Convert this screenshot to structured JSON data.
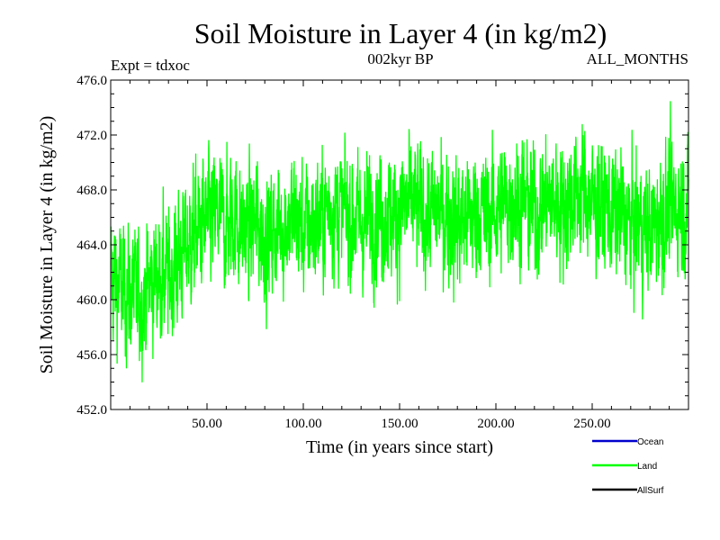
{
  "chart_data": {
    "type": "line",
    "title": "Soil Moisture in Layer 4 (in kg/m2)",
    "subtitle_left": "Expt = tdxoc",
    "subtitle_center": "002kyr BP",
    "subtitle_right": "ALL_MONTHS",
    "xlabel": "Time (in years since start)",
    "ylabel": "Soil Moisture in Layer 4 (in kg/m2)",
    "xlim": [
      0,
      300
    ],
    "ylim": [
      452,
      476
    ],
    "x_ticks": [
      50,
      100,
      150,
      200,
      250
    ],
    "x_tick_labels": [
      "50.00",
      "100.00",
      "150.00",
      "200.00",
      "250.00"
    ],
    "y_ticks": [
      452,
      456,
      460,
      464,
      468,
      472,
      476
    ],
    "y_tick_labels": [
      "452.0",
      "456.0",
      "460.0",
      "464.0",
      "468.0",
      "472.0",
      "476.0"
    ],
    "grid": false,
    "legend_position": "bottom-right",
    "series": [
      {
        "name": "Ocean",
        "color": "#0000cc",
        "x": [],
        "y": []
      },
      {
        "name": "Land",
        "color": "#00ff00",
        "x": [
          0,
          5,
          10,
          15,
          20,
          25,
          30,
          35,
          40,
          45,
          50,
          55,
          60,
          65,
          70,
          75,
          80,
          85,
          90,
          95,
          100,
          105,
          110,
          115,
          120,
          125,
          130,
          135,
          140,
          145,
          150,
          155,
          160,
          165,
          170,
          175,
          180,
          185,
          190,
          195,
          200,
          205,
          210,
          215,
          220,
          225,
          230,
          235,
          240,
          245,
          250,
          255,
          260,
          265,
          270,
          275,
          280,
          285,
          290,
          295,
          300
        ],
        "y": [
          462.0,
          461.0,
          460.5,
          460.0,
          461.0,
          462.0,
          461.5,
          463.0,
          464.0,
          465.0,
          465.5,
          466.0,
          465.5,
          466.0,
          465.0,
          465.5,
          464.5,
          465.0,
          465.5,
          466.0,
          465.0,
          465.5,
          466.0,
          467.0,
          466.5,
          466.0,
          465.5,
          466.0,
          466.5,
          466.0,
          466.5,
          467.0,
          466.5,
          466.0,
          466.5,
          466.0,
          465.5,
          466.0,
          466.5,
          466.0,
          466.5,
          467.0,
          467.5,
          467.0,
          466.5,
          467.0,
          467.5,
          467.0,
          467.5,
          468.0,
          467.0,
          466.5,
          466.5,
          466.0,
          465.5,
          465.5,
          465.0,
          466.0,
          466.5,
          467.0,
          466.5
        ],
        "y_min_observed": [
          455.8,
          454.5,
          454.7,
          458.0,
          457.3,
          459.0,
          458.0,
          456.8,
          459.0,
          457.8,
          458.0,
          458.0,
          459.0,
          458.0,
          457.5
        ],
        "y_max_observed": [
          470.0,
          468.0,
          468.8,
          474.9,
          475.0,
          473.0,
          474.0,
          475.4,
          475.6,
          473.0,
          474.0,
          473.8,
          474.5,
          474.0,
          473.5
        ]
      },
      {
        "name": "AllSurf",
        "color": "#000000",
        "x": [],
        "y": []
      }
    ]
  }
}
